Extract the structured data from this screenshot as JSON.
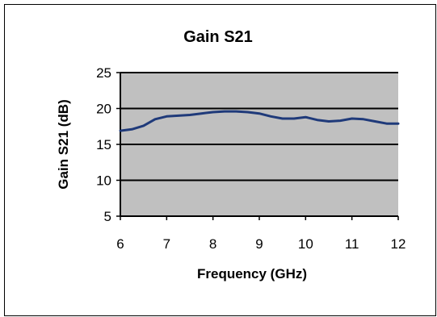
{
  "chart_data": {
    "type": "line",
    "title": "Gain S21",
    "xlabel": "Frequency (GHz)",
    "ylabel": "Gain S21 (dB)",
    "xlim": [
      6,
      12
    ],
    "ylim": [
      5,
      25
    ],
    "xticks": [
      6,
      7,
      8,
      9,
      10,
      11,
      12
    ],
    "yticks": [
      5,
      10,
      15,
      20,
      25
    ],
    "grid": "horizontal",
    "legend": "none",
    "colors": {
      "plot_background": "#c0c0c0",
      "line": "#1f3a7a",
      "gridline": "#000000",
      "frame": "#000000"
    },
    "series": [
      {
        "x": [
          6.0,
          6.25,
          6.5,
          6.75,
          7.0,
          7.25,
          7.5,
          7.75,
          8.0,
          8.25,
          8.5,
          8.75,
          9.0,
          9.25,
          9.5,
          9.75,
          10.0,
          10.25,
          10.5,
          10.75,
          11.0,
          11.25,
          11.5,
          11.75,
          12.0
        ],
        "y": [
          16.9,
          17.1,
          17.6,
          18.5,
          18.9,
          19.0,
          19.1,
          19.3,
          19.5,
          19.6,
          19.6,
          19.5,
          19.3,
          18.9,
          18.6,
          18.6,
          18.8,
          18.4,
          18.2,
          18.3,
          18.6,
          18.5,
          18.2,
          17.9,
          17.9
        ]
      }
    ]
  }
}
